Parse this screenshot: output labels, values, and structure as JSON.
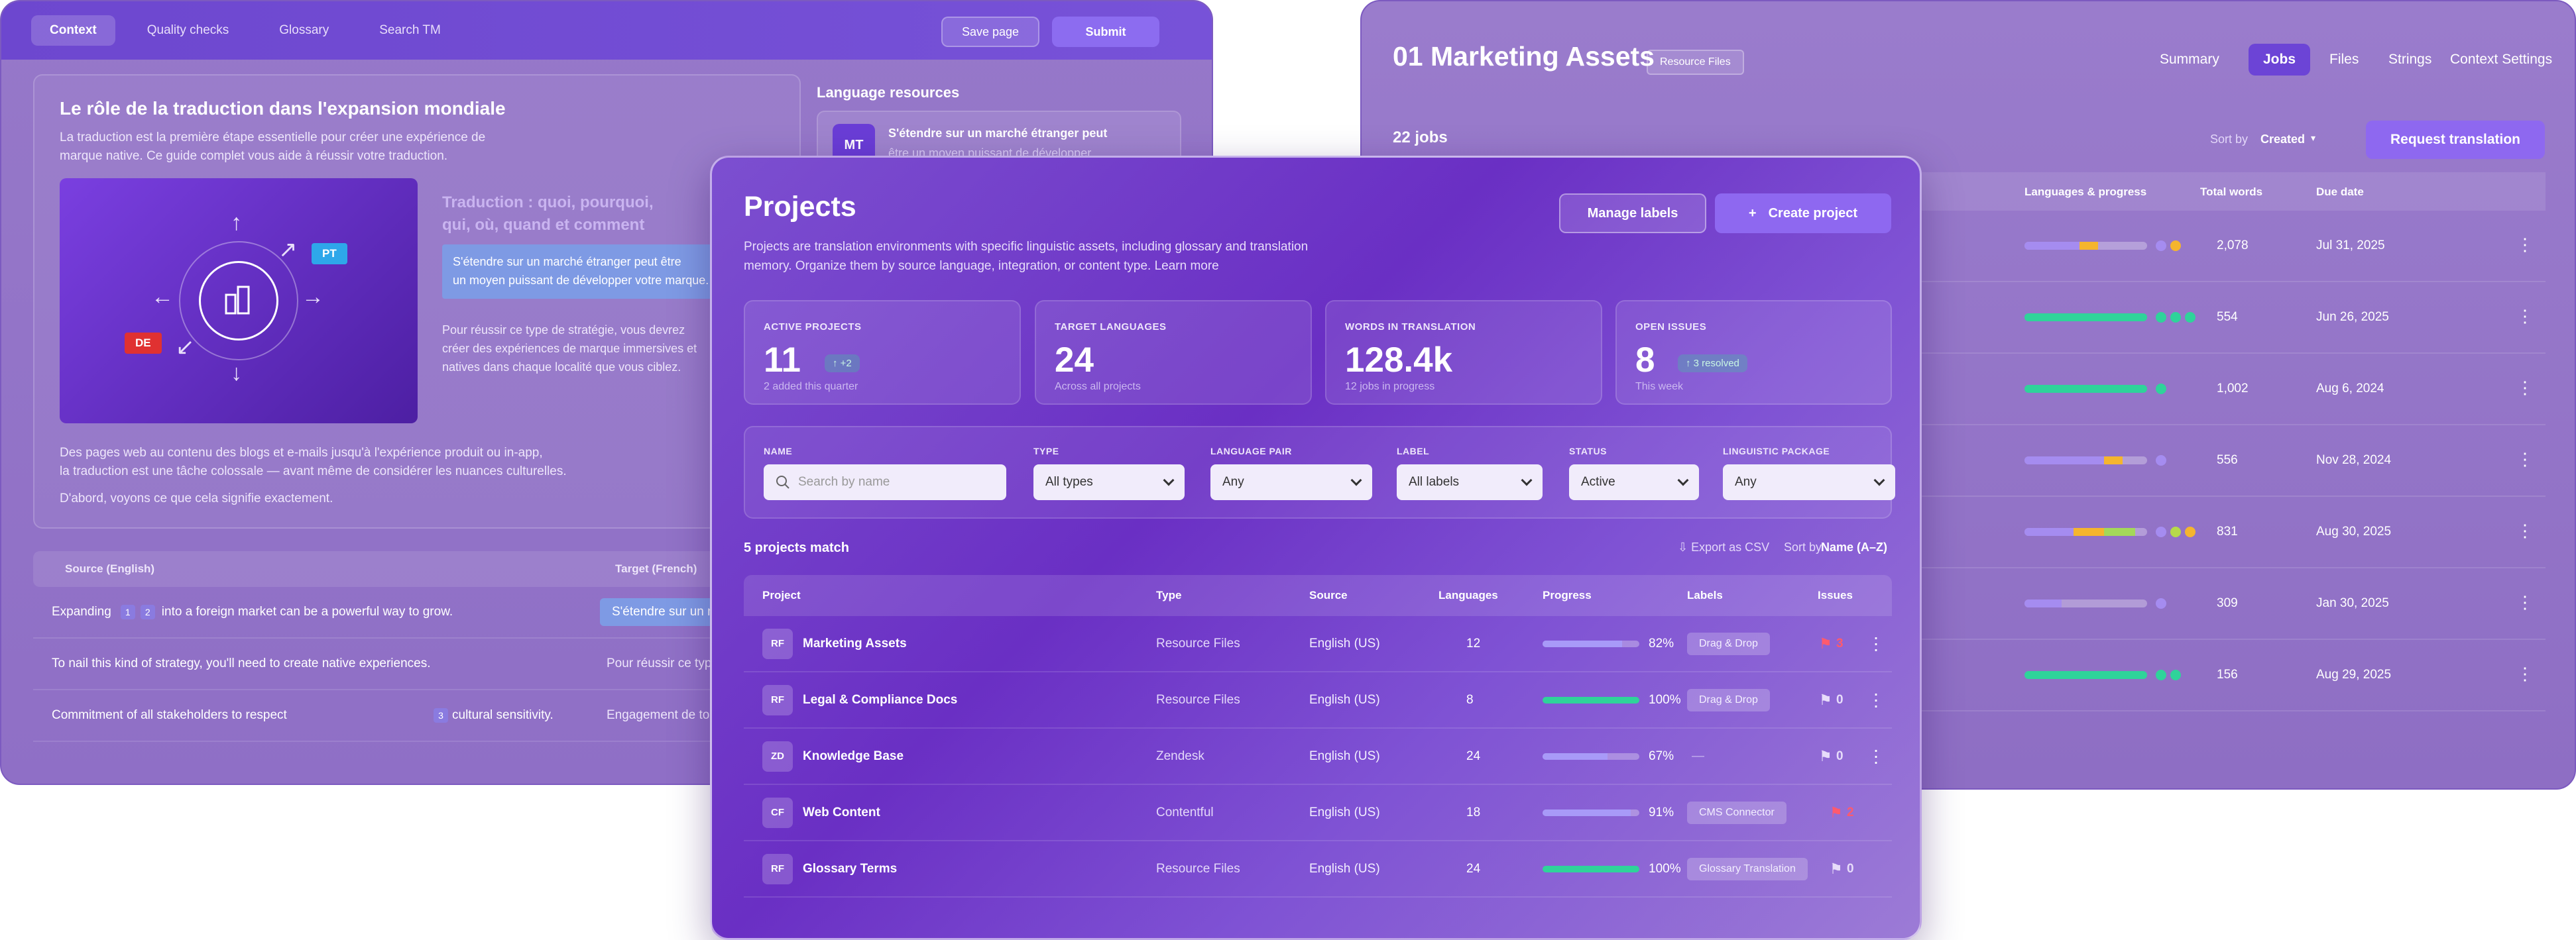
{
  "left": {
    "nav": [
      "Context",
      "Quality checks",
      "Glossary",
      "Search TM"
    ],
    "save_label": "Save page",
    "submit_label": "Submit",
    "title": "Le rôle de la traduction dans l'expansion mondiale",
    "intro_1": "La traduction est la première étape essentielle pour créer une expérience de",
    "intro_2": "marque native. Ce guide complet vous aide à réussir votre traduction.",
    "badge_pt": "PT",
    "badge_de": "DE",
    "subhead_1": "Traduction : quoi, pourquoi,",
    "subhead_2": "qui, où, quand et comment",
    "highlight_1": "S'étendre sur un marché étranger peut être",
    "highlight_2": "un moyen puissant de développer votre marque.",
    "para_1": "Pour réussir ce type de stratégie, vous devrez",
    "para_2": "créer des expériences de marque immersives et",
    "para_3": "natives dans chaque localité que vous ciblez.",
    "body_1": "Des pages web au contenu des blogs et e-mails jusqu'à l'expérience produit ou in-app,",
    "body_2": "la traduction est une tâche colossale — avant même de considérer les nuances culturelles.",
    "body_3": "D'abord, voyons ce que cela signifie exactement.",
    "lang_resources": "Language resources",
    "mt_badge": "MT",
    "mt_title": "S'étendre sur un marché étranger peut",
    "mt_sub": "être un moyen puissant de développer",
    "col_source": "Source (English)",
    "col_target": "Target (French)",
    "rows": [
      {
        "a": "Expanding",
        "n1": "1",
        "n2": "2",
        "b": "into a foreign market can be a powerful way to grow.",
        "t": "S'étendre sur un m"
      },
      {
        "a": "To nail this kind of strategy, you'll need to create native experiences.",
        "t": "Pour réussir ce typ"
      },
      {
        "a": "Commitment of all stakeholders to respect",
        "n1": "3",
        "b": "cultural sensitivity.",
        "t": "Engagement de tou"
      }
    ]
  },
  "right": {
    "title": "01 Marketing Assets",
    "tag": "Resource Files",
    "tabs": [
      "Summary",
      "Jobs",
      "Files",
      "Strings",
      "Context Settings"
    ],
    "jobs_count": "22 jobs",
    "sort_label": "Sort by",
    "sort_value": "Created",
    "request_label": "Request translation",
    "col_langs": "Languages & progress",
    "col_words": "Total words",
    "col_due": "Due date",
    "rows": [
      {
        "words": "2,078",
        "due": "Jul 31, 2025",
        "segs": [
          {
            "w": 0.45,
            "c": "#a58cf0"
          },
          {
            "w": 0.15,
            "c": "#f5b52e"
          }
        ],
        "dots": [
          "#a58cf0",
          "#f5b52e"
        ]
      },
      {
        "words": "554",
        "due": "Jun 26, 2025",
        "segs": [
          {
            "w": 1.0,
            "c": "#2fd39a"
          }
        ],
        "dots": [
          "#2fd39a",
          "#2fd39a",
          "#2fd39a"
        ]
      },
      {
        "words": "1,002",
        "due": "Aug 6, 2024",
        "segs": [
          {
            "w": 1.0,
            "c": "#2fd39a"
          }
        ],
        "dots": [
          "#2fd39a"
        ]
      },
      {
        "words": "556",
        "due": "Nov 28, 2024",
        "segs": [
          {
            "w": 0.65,
            "c": "#a58cf0"
          },
          {
            "w": 0.15,
            "c": "#f5b52e"
          }
        ],
        "dots": [
          "#a58cf0"
        ]
      },
      {
        "words": "831",
        "due": "Aug 30, 2025",
        "segs": [
          {
            "w": 0.4,
            "c": "#a58cf0"
          },
          {
            "w": 0.25,
            "c": "#f5b52e"
          },
          {
            "w": 0.25,
            "c": "#a4d85a"
          }
        ],
        "dots": [
          "#a58cf0",
          "#b6d94a",
          "#f5b52e"
        ]
      },
      {
        "words": "309",
        "due": "Jan 30, 2025",
        "segs": [
          {
            "w": 0.3,
            "c": "#a58cf0"
          }
        ],
        "dots": [
          "#a58cf0"
        ]
      },
      {
        "words": "156",
        "due": "Aug 29, 2025",
        "segs": [
          {
            "w": 1.0,
            "c": "#2fd39a"
          }
        ],
        "dots": [
          "#2fd39a",
          "#2fd39a"
        ]
      }
    ]
  },
  "center": {
    "title": "Projects",
    "desc": "Projects are translation environments with specific linguistic assets, including glossary and translation memory. Organize them by source language, integration, or content type. Learn more",
    "manage_labels": "Manage labels",
    "create_project": "Create project",
    "create_icon": "+",
    "stats": [
      {
        "label": "ACTIVE PROJECTS",
        "value": "11",
        "chip": "↑ +2",
        "sub": "2 added this quarter"
      },
      {
        "label": "TARGET LANGUAGES",
        "value": "24",
        "sub": "Across all projects"
      },
      {
        "label": "WORDS IN TRANSLATION",
        "value": "128.4k",
        "sub": "12 jobs in progress"
      },
      {
        "label": "OPEN ISSUES",
        "value": "8",
        "chip": "↑ 3 resolved",
        "sub": "This week"
      }
    ],
    "filters": {
      "name_label": "NAME",
      "name_placeholder": "Search by name",
      "type_label": "TYPE",
      "type_value": "All types",
      "pair_label": "LANGUAGE PAIR",
      "pair_value": "Any",
      "label_label": "LABEL",
      "label_value": "All labels",
      "status_label": "STATUS",
      "status_value": "Active",
      "pkg_label": "LINGUISTIC PACKAGE",
      "pkg_value": "Any"
    },
    "match_count": "5 projects match",
    "export": "⇩ Export as CSV",
    "sort_by": "Sort by",
    "sort_value": "Name (A–Z)",
    "cols": [
      "Project",
      "Type",
      "Source",
      "Languages",
      "Progress",
      "Labels",
      "Issues"
    ],
    "rows": [
      {
        "av": "RF",
        "name": "Marketing Assets",
        "type": "Resource Files",
        "src": "English (US)",
        "langs": "12",
        "pct": "82%",
        "prog": 0.82,
        "color": "#a89af8",
        "label": "Drag & Drop",
        "issues": "3",
        "flag": "#ff5a6e"
      },
      {
        "av": "RF",
        "name": "Legal & Compliance Docs",
        "type": "Resource Files",
        "src": "English (US)",
        "langs": "8",
        "pct": "100%",
        "prog": 1.0,
        "color": "#2fd39a",
        "label": "Drag & Drop",
        "issues": "0",
        "flag": "#e7dcfa"
      },
      {
        "av": "ZD",
        "name": "Knowledge Base",
        "type": "Zendesk",
        "src": "English (US)",
        "langs": "24",
        "pct": "67%",
        "prog": 0.67,
        "color": "#a89af8",
        "label": "—",
        "issues": "0",
        "flag": "#e7dcfa"
      },
      {
        "av": "CF",
        "name": "Web Content",
        "type": "Contentful",
        "src": "English (US)",
        "langs": "18",
        "pct": "91%",
        "prog": 0.91,
        "color": "#a89af8",
        "label": "CMS Connector",
        "issues": "2",
        "flag": "#ff5a6e"
      },
      {
        "av": "RF",
        "name": "Glossary Terms",
        "type": "Resource Files",
        "src": "English (US)",
        "langs": "24",
        "pct": "100%",
        "prog": 1.0,
        "color": "#2fd39a",
        "label": "Glossary Translation",
        "issues": "0",
        "flag": "#e7dcfa"
      }
    ]
  }
}
